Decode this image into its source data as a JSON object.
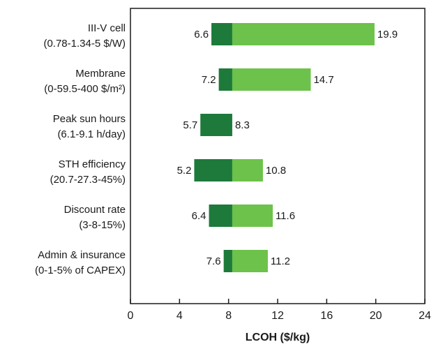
{
  "chart_data": {
    "type": "bar",
    "subtype": "tornado",
    "xlabel": "LCOH ($/kg)",
    "xlim": [
      0,
      24
    ],
    "xticks": [
      0,
      4,
      8,
      12,
      16,
      20,
      24
    ],
    "baseline": 8.3,
    "grid": false,
    "categories": [
      {
        "name": "III-V cell",
        "range": "(0.78-1.34-5 $/W)",
        "low": 6.6,
        "high": 19.9
      },
      {
        "name": "Membrane",
        "range": "(0-59.5-400 $/m²)",
        "low": 7.2,
        "high": 14.7
      },
      {
        "name": "Peak sun hours",
        "range": "(6.1-9.1 h/day)",
        "low": 5.7,
        "high": 8.3
      },
      {
        "name": "STH efficiency",
        "range": "(20.7-27.3-45%)",
        "low": 5.2,
        "high": 10.8
      },
      {
        "name": "Discount rate",
        "range": "(3-8-15%)",
        "low": 6.4,
        "high": 11.6
      },
      {
        "name": "Admin & insurance",
        "range": "(0-1-5% of CAPEX)",
        "low": 7.6,
        "high": 11.2
      }
    ],
    "colors": {
      "low": "#1d7a3b",
      "high": "#6cc24a"
    }
  }
}
